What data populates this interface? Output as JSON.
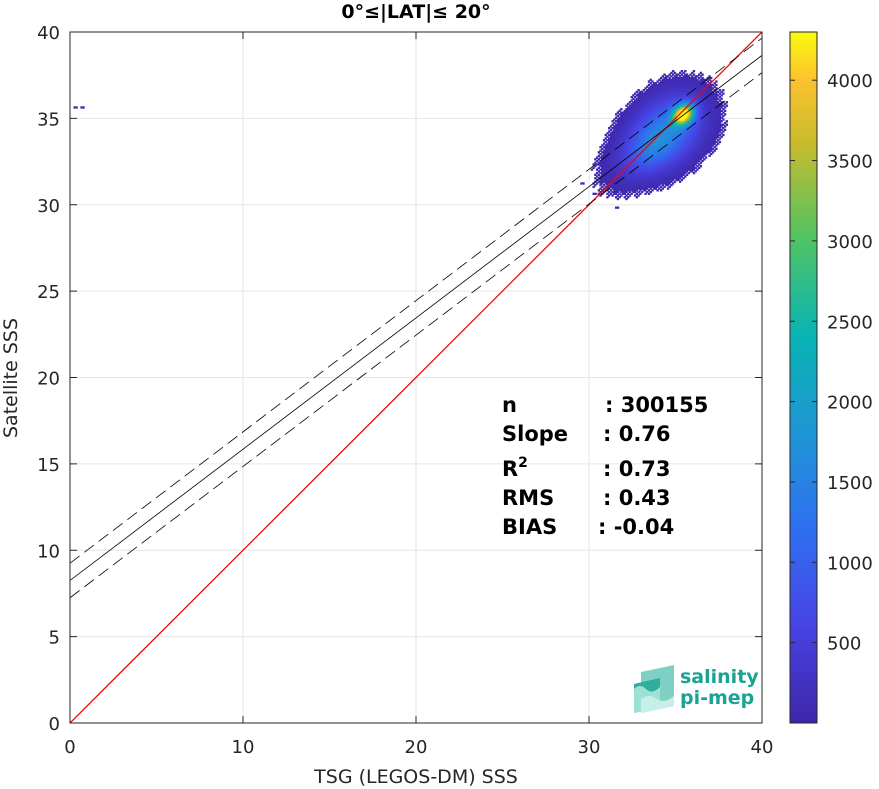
{
  "chart_data": {
    "type": "heatmap",
    "title": "0°≤|LAT|≤ 20°",
    "xlabel": "TSG (LEGOS-DM) SSS",
    "ylabel": "Satellite SSS",
    "xlim": [
      0,
      40
    ],
    "ylim": [
      0,
      40
    ],
    "xticks": [
      "0",
      "10",
      "20",
      "30",
      "40"
    ],
    "yticks": [
      "0",
      "5",
      "10",
      "15",
      "20",
      "25",
      "30",
      "35",
      "40"
    ],
    "grid": true,
    "colormap": "parula",
    "colorbar": {
      "range": [
        0,
        4300
      ],
      "ticks": [
        "500",
        "1000",
        "1500",
        "2000",
        "2500",
        "3000",
        "3500",
        "4000"
      ]
    },
    "one_to_one_line": {
      "color": "#ff0000",
      "from": [
        0,
        0
      ],
      "to": [
        40,
        40
      ]
    },
    "fit_line": {
      "slope": 0.76,
      "intercept": 8.25,
      "color": "#000000"
    },
    "fit_bounds": {
      "offset": 1.0,
      "style": "dashed"
    },
    "density_blobs": [
      {
        "cx": 34.5,
        "cy": 34.3,
        "sx": 1.5,
        "sy": 1.1,
        "peak": 1400
      },
      {
        "cx": 35.4,
        "cy": 35.2,
        "sx": 0.45,
        "sy": 0.35,
        "peak": 4300
      },
      {
        "cx": 32.2,
        "cy": 32.4,
        "sx": 1.4,
        "sy": 0.9,
        "peak": 200
      },
      {
        "cx": 33.5,
        "cy": 33.2,
        "sx": 1.0,
        "sy": 0.8,
        "peak": 600
      }
    ],
    "outliers": [
      {
        "x": 0.2,
        "y": 35.6
      },
      {
        "x": 0.6,
        "y": 35.6
      },
      {
        "x": 31.0,
        "y": 31.0
      },
      {
        "x": 30.2,
        "y": 30.6
      },
      {
        "x": 31.5,
        "y": 29.8
      },
      {
        "x": 29.5,
        "y": 31.2
      },
      {
        "x": 30.8,
        "y": 32.2
      },
      {
        "x": 32.8,
        "y": 31.0
      }
    ],
    "stats": [
      {
        "label": "n",
        "value": ": 300155"
      },
      {
        "label": "Slope",
        "value": ": 0.76"
      },
      {
        "label": "R",
        "sup": "2",
        "value": ": 0.73"
      },
      {
        "label": "RMS",
        "value": ": 0.43"
      },
      {
        "label": "BIAS",
        "value": ": -0.04"
      }
    ]
  },
  "logo": {
    "line1": "salinity",
    "line2": "pi-mep"
  }
}
